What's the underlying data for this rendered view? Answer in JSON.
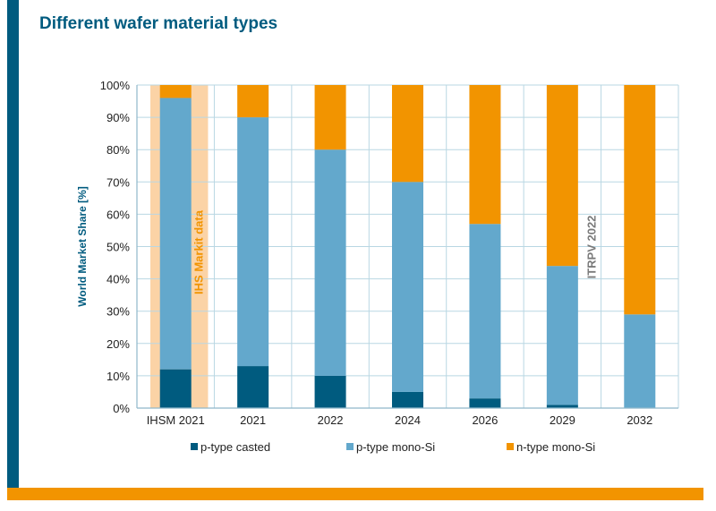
{
  "title": "Different wafer material types",
  "chart_data": {
    "type": "bar",
    "stacked": true,
    "categories": [
      "IHSM 2021",
      "2021",
      "2022",
      "2024",
      "2026",
      "2029",
      "2032"
    ],
    "series": [
      {
        "name": "p-type casted",
        "color": "#005b7f",
        "values": [
          12,
          13,
          10,
          5,
          3,
          1,
          0
        ]
      },
      {
        "name": "p-type mono-Si",
        "color": "#63a8cc",
        "values": [
          84,
          77,
          70,
          65,
          54,
          43,
          29
        ]
      },
      {
        "name": "n-type mono-Si",
        "color": "#f29400",
        "values": [
          4,
          10,
          20,
          30,
          43,
          56,
          71
        ]
      }
    ],
    "ylabel": "World Market Share [%]",
    "ylim": [
      0,
      100
    ],
    "yticks": [
      "0%",
      "10%",
      "20%",
      "30%",
      "40%",
      "50%",
      "60%",
      "70%",
      "80%",
      "90%",
      "100%"
    ],
    "grid": true,
    "legend": "bottom",
    "annotations": [
      {
        "text": "IHS Markit data",
        "color": "#f29400",
        "highlight_color": "#fbd3a6",
        "category": "IHSM 2021"
      },
      {
        "text": "ITRPV  2022",
        "color": "#7a7a7a",
        "category": "2029-2032"
      }
    ]
  }
}
